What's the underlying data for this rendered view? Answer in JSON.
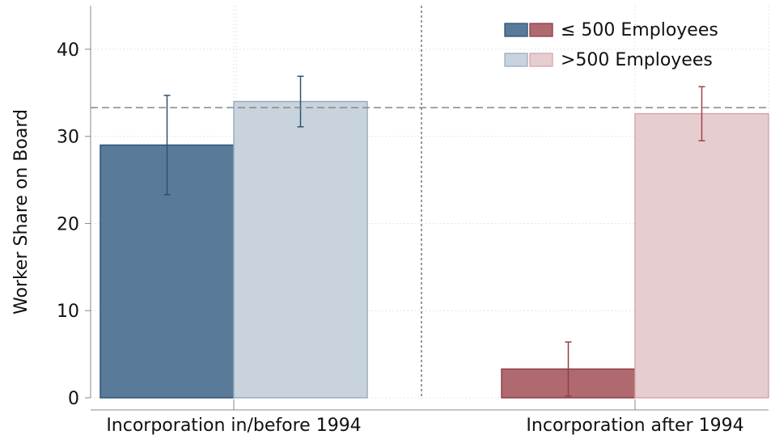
{
  "chart_data": {
    "type": "bar",
    "ylabel": "Worker Share on Board",
    "xlabel": "",
    "ylim": [
      0,
      45
    ],
    "yticks": [
      0,
      10,
      20,
      30,
      40
    ],
    "grid": true,
    "legend_position": "top-right",
    "reference_line": {
      "y": 33.3,
      "style": "dashed"
    },
    "groups": [
      "Incorporation in/before 1994",
      "Incorporation after 1994"
    ],
    "legend": [
      {
        "label": "≤ 500 Employees",
        "colors": [
          "#5a7a99",
          "#b0696e"
        ]
      },
      {
        "label": ">500 Employees",
        "colors": [
          "#c8d3dd",
          "#e6cdd0"
        ]
      }
    ],
    "series": [
      {
        "name": "≤ 500 Employees",
        "values": [
          29.0,
          3.3
        ],
        "ci_low": [
          23.3,
          0.2
        ],
        "ci_high": [
          34.7,
          6.4
        ],
        "fill": [
          "#5a7a99",
          "#b0696e"
        ],
        "stroke": [
          "#2d5275",
          "#8f3f48"
        ]
      },
      {
        "name": ">500 Employees",
        "values": [
          34.0,
          32.6
        ],
        "ci_low": [
          31.1,
          29.5
        ],
        "ci_high": [
          36.9,
          35.7
        ],
        "fill": [
          "#c8d3dd",
          "#e6cdd0"
        ],
        "stroke": [
          "#9aaebf",
          "#d6a7ae"
        ]
      }
    ]
  }
}
